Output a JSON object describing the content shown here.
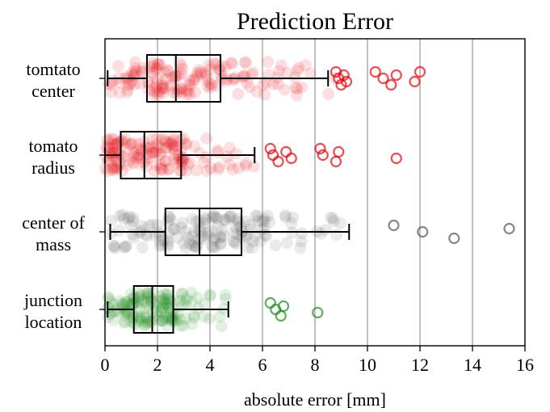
{
  "chart_data": {
    "type": "boxplot",
    "orientation": "horizontal",
    "title": "Prediction Error",
    "xlabel": "absolute error [mm]",
    "ylabel": "",
    "xlim": [
      0,
      16
    ],
    "xticks": [
      0,
      2,
      4,
      6,
      8,
      10,
      12,
      14,
      16
    ],
    "grid": "vertical",
    "categories": [
      {
        "label_lines": [
          "tomtato",
          "center"
        ],
        "color": "#e8000b",
        "stats": {
          "whisker_low": 0.1,
          "q1": 1.6,
          "median": 2.7,
          "q3": 4.4,
          "whisker_high": 8.5
        },
        "outliers": [
          8.8,
          8.9,
          9.0,
          9.1,
          9.2,
          10.3,
          10.6,
          10.9,
          11.1,
          11.8,
          12.0
        ],
        "jitter_range": [
          0,
          8.8
        ]
      },
      {
        "label_lines": [
          "tomato",
          "radius"
        ],
        "color": "#e8000b",
        "stats": {
          "whisker_low": 0.0,
          "q1": 0.6,
          "median": 1.5,
          "q3": 2.9,
          "whisker_high": 5.7
        },
        "outliers": [
          6.3,
          6.4,
          6.6,
          6.9,
          7.1,
          8.2,
          8.3,
          8.8,
          8.9,
          11.1
        ],
        "jitter_range": [
          0,
          5.9
        ]
      },
      {
        "label_lines": [
          "center of",
          "mass"
        ],
        "color": "#555555",
        "stats": {
          "whisker_low": 0.2,
          "q1": 2.3,
          "median": 3.6,
          "q3": 5.2,
          "whisker_high": 9.3
        },
        "outliers": [
          11.0,
          12.1,
          13.3,
          15.4
        ],
        "jitter_range": [
          0,
          9.1
        ]
      },
      {
        "label_lines": [
          "junction",
          "location"
        ],
        "color": "#1a8c1a",
        "stats": {
          "whisker_low": 0.1,
          "q1": 1.1,
          "median": 1.8,
          "q3": 2.6,
          "whisker_high": 4.7
        },
        "outliers": [
          6.3,
          6.5,
          6.7,
          6.8,
          8.1
        ],
        "jitter_range": [
          0,
          4.8
        ]
      }
    ]
  }
}
